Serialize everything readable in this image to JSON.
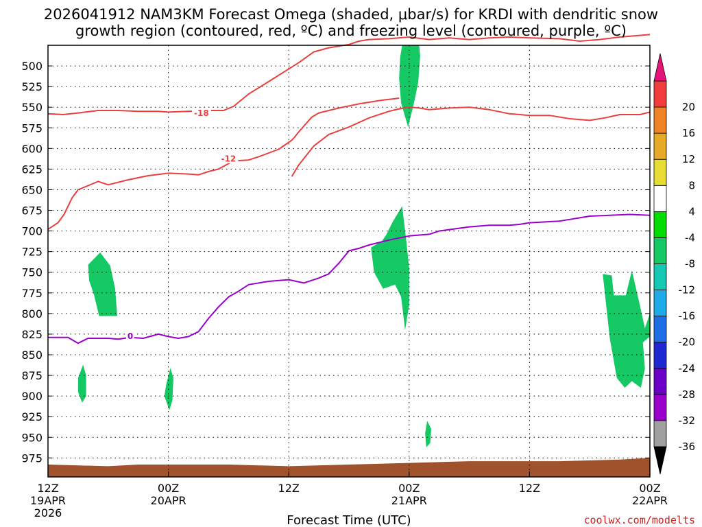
{
  "title_line1": "2026041912 NAM3KM Forecast Omega (shaded, μbar/s) for KRDI with dendritic snow",
  "title_line2": "growth region (contoured, red, ºC) and freezing level (contoured, purple, ºC)",
  "credit": "coolwx.com/modelts",
  "chart_data": {
    "type": "time-height cross section",
    "xlabel": "Forecast Time (UTC)",
    "x_range_hours": [
      0,
      60
    ],
    "x_ticks": [
      {
        "h": 0,
        "l1": "12Z",
        "l2": "19APR",
        "l3": "2026"
      },
      {
        "h": 12,
        "l1": "00Z",
        "l2": "20APR",
        "l3": ""
      },
      {
        "h": 24,
        "l1": "12Z",
        "l2": "",
        "l3": ""
      },
      {
        "h": 36,
        "l1": "00Z",
        "l2": "21APR",
        "l3": ""
      },
      {
        "h": 48,
        "l1": "12Z",
        "l2": "",
        "l3": ""
      },
      {
        "h": 60,
        "l1": "00Z",
        "l2": "22APR",
        "l3": ""
      }
    ],
    "y_range_mb": [
      998,
      475
    ],
    "y_ticks": [
      500,
      525,
      550,
      575,
      600,
      625,
      650,
      675,
      700,
      725,
      750,
      775,
      800,
      825,
      850,
      875,
      900,
      925,
      950,
      975
    ],
    "grid": true,
    "colorbar": {
      "boundaries": [
        -36,
        -32,
        -28,
        -24,
        -20,
        -16,
        -12,
        -8,
        -4,
        4,
        8,
        12,
        16,
        20
      ],
      "tick_labels": [
        "-36",
        "-32",
        "-28",
        "-24",
        "-20",
        "-16",
        "-12",
        "-8",
        "-4",
        "4",
        "8",
        "12",
        "16",
        "20"
      ],
      "colors": [
        "#a0a0a0",
        "#9900cc",
        "#6a00c8",
        "#1e28d2",
        "#1e6ee6",
        "#1eaae6",
        "#14c8b4",
        "#14c864",
        "#00dc00",
        "#ffffff",
        "#e6dc32",
        "#e6aa28",
        "#f08228",
        "#f03c3c"
      ],
      "under_color": "#000000",
      "over_color": "#e6147a"
    },
    "terrain": {
      "color": "#a0522d",
      "surface_mb": [
        [
          0,
          983
        ],
        [
          6,
          985
        ],
        [
          9,
          983
        ],
        [
          18,
          983
        ],
        [
          24,
          985
        ],
        [
          30,
          983
        ],
        [
          36,
          981
        ],
        [
          42,
          979
        ],
        [
          51,
          979
        ],
        [
          57,
          977
        ],
        [
          60,
          975
        ]
      ]
    },
    "contours": [
      {
        "level": "-18",
        "color": "#e8403c",
        "label_at": [
          15.3,
          557
        ],
        "points": [
          [
            0,
            558
          ],
          [
            1.5,
            559
          ],
          [
            3,
            557
          ],
          [
            5,
            554
          ],
          [
            7,
            554
          ],
          [
            9,
            555
          ],
          [
            11,
            555
          ],
          [
            12,
            556
          ],
          [
            14,
            555
          ],
          [
            16,
            554
          ],
          [
            17.5,
            554
          ],
          [
            18.5,
            549
          ],
          [
            20,
            534
          ],
          [
            22,
            519
          ],
          [
            25,
            496
          ],
          [
            26.5,
            483
          ],
          [
            28,
            478
          ],
          [
            30,
            474
          ],
          [
            31,
            470
          ],
          [
            32,
            468
          ],
          [
            34,
            467
          ],
          [
            36,
            465
          ],
          [
            38,
            468
          ],
          [
            40,
            466
          ],
          [
            42,
            468
          ],
          [
            44,
            466
          ],
          [
            46,
            465
          ],
          [
            48,
            466
          ],
          [
            51,
            467
          ],
          [
            53,
            470
          ],
          [
            55,
            468
          ],
          [
            57,
            465
          ],
          [
            60,
            462
          ]
        ]
      },
      {
        "level": "-18",
        "color": "#e8403c",
        "points": [
          [
            24.3,
            634
          ],
          [
            25,
            620
          ],
          [
            26.5,
            597
          ],
          [
            28,
            583
          ],
          [
            30,
            574
          ],
          [
            32,
            563
          ],
          [
            34,
            555
          ],
          [
            35,
            552
          ],
          [
            36,
            550
          ],
          [
            37,
            551
          ],
          [
            38,
            553
          ],
          [
            40,
            551
          ],
          [
            42,
            550
          ],
          [
            44,
            553
          ],
          [
            46,
            558
          ],
          [
            48,
            560
          ],
          [
            50,
            560
          ],
          [
            52,
            564
          ],
          [
            54,
            566
          ],
          [
            55.5,
            563
          ],
          [
            57,
            559
          ],
          [
            59,
            559
          ],
          [
            60,
            556
          ]
        ]
      },
      {
        "level": "-12",
        "color": "#e8403c",
        "label_at": [
          18,
          612
        ],
        "points": [
          [
            0,
            698
          ],
          [
            1,
            690
          ],
          [
            1.6,
            680
          ],
          [
            2,
            670
          ],
          [
            2.4,
            660
          ],
          [
            3,
            650
          ],
          [
            4,
            645
          ],
          [
            5,
            640
          ],
          [
            6,
            644
          ],
          [
            8,
            638
          ],
          [
            10,
            633
          ],
          [
            12,
            630
          ],
          [
            14,
            631
          ],
          [
            15,
            632
          ],
          [
            16,
            628
          ],
          [
            17,
            625
          ],
          [
            18.5,
            615
          ],
          [
            20,
            614
          ],
          [
            21,
            610
          ],
          [
            23,
            601
          ],
          [
            24.3,
            590
          ],
          [
            24.6,
            586
          ],
          [
            25,
            580
          ],
          [
            25.5,
            573
          ],
          [
            26.3,
            562
          ],
          [
            27,
            557
          ],
          [
            29,
            551
          ],
          [
            31,
            546
          ],
          [
            33,
            542
          ],
          [
            35,
            539
          ]
        ]
      },
      {
        "level": "0",
        "color": "#9900cc",
        "label_at": [
          8.2,
          827
        ],
        "points": [
          [
            0,
            829
          ],
          [
            2,
            829
          ],
          [
            3,
            836
          ],
          [
            4,
            830
          ],
          [
            6,
            830
          ],
          [
            7,
            831
          ],
          [
            8.2,
            829
          ],
          [
            9.5,
            830
          ],
          [
            11,
            825
          ],
          [
            12,
            828
          ],
          [
            13,
            830
          ],
          [
            14,
            828
          ],
          [
            15,
            822
          ],
          [
            16,
            806
          ],
          [
            17,
            792
          ],
          [
            18,
            780
          ],
          [
            19,
            773
          ],
          [
            20,
            765
          ],
          [
            22,
            761
          ],
          [
            24,
            759
          ],
          [
            25.5,
            763
          ],
          [
            27,
            757
          ],
          [
            28,
            752
          ],
          [
            28.6,
            744
          ],
          [
            29,
            739
          ],
          [
            30,
            724
          ],
          [
            31,
            721
          ],
          [
            32,
            717
          ],
          [
            34,
            711
          ],
          [
            36,
            706
          ],
          [
            38,
            704
          ],
          [
            39,
            700
          ],
          [
            42,
            695
          ],
          [
            44,
            693
          ],
          [
            46,
            693
          ],
          [
            47,
            692
          ],
          [
            48,
            690
          ],
          [
            51,
            688
          ],
          [
            52,
            686
          ],
          [
            54,
            682
          ],
          [
            58,
            680
          ],
          [
            60,
            681
          ]
        ]
      }
    ],
    "omega_regions": [
      {
        "value": 6,
        "polygon": [
          [
            21.2,
            475
          ],
          [
            21.9,
            475
          ],
          [
            22.1,
            490
          ],
          [
            22.0,
            512
          ],
          [
            21.6,
            535
          ],
          [
            21.2,
            522
          ],
          [
            21.0,
            497
          ]
        ]
      },
      {
        "value": 6,
        "polygon": [
          [
            23.3,
            475
          ],
          [
            23.8,
            475
          ],
          [
            23.9,
            490
          ],
          [
            23.6,
            504
          ],
          [
            23.3,
            490
          ]
        ]
      },
      {
        "value": -6,
        "polygon": [
          [
            35.3,
            475
          ],
          [
            37.0,
            475
          ],
          [
            37.1,
            488
          ],
          [
            36.9,
            520
          ],
          [
            36.5,
            544
          ],
          [
            35.9,
            574
          ],
          [
            35.2,
            545
          ],
          [
            35.0,
            515
          ],
          [
            35.1,
            490
          ]
        ]
      },
      {
        "value": -6,
        "polygon": [
          [
            4.0,
            741
          ],
          [
            5.2,
            726
          ],
          [
            6.2,
            742
          ],
          [
            6.7,
            770
          ],
          [
            6.9,
            803
          ],
          [
            5.1,
            803
          ],
          [
            4.6,
            778
          ],
          [
            4.1,
            760
          ]
        ]
      },
      {
        "value": 6,
        "polygon": [
          [
            10.0,
            720
          ],
          [
            11.0,
            703
          ],
          [
            11.5,
            728
          ],
          [
            11.5,
            756
          ],
          [
            11.1,
            788
          ],
          [
            10.4,
            768
          ],
          [
            10.0,
            745
          ]
        ]
      },
      {
        "value": -6,
        "polygon": [
          [
            3.0,
            878
          ],
          [
            3.5,
            862
          ],
          [
            3.8,
            875
          ],
          [
            3.8,
            900
          ],
          [
            3.4,
            908
          ],
          [
            3.0,
            895
          ]
        ]
      },
      {
        "value": -6,
        "polygon": [
          [
            11.8,
            885
          ],
          [
            12.2,
            866
          ],
          [
            12.5,
            878
          ],
          [
            12.4,
            905
          ],
          [
            12.1,
            917
          ],
          [
            11.6,
            900
          ]
        ]
      },
      {
        "value": 6,
        "polygon": [
          [
            16.2,
            805
          ],
          [
            17.0,
            790
          ],
          [
            17.9,
            800
          ],
          [
            18.1,
            829
          ],
          [
            17.0,
            831
          ],
          [
            16.4,
            822
          ]
        ]
      },
      {
        "value": 6,
        "polygon": [
          [
            27.2,
            730
          ],
          [
            27.8,
            701
          ],
          [
            28.6,
            707
          ],
          [
            28.7,
            740
          ],
          [
            28.0,
            780
          ],
          [
            27.5,
            790
          ],
          [
            27.2,
            760
          ]
        ]
      },
      {
        "value": 6,
        "polygon": [
          [
            29.1,
            830
          ],
          [
            29.6,
            790
          ],
          [
            30.1,
            822
          ],
          [
            30.2,
            860
          ],
          [
            29.8,
            890
          ],
          [
            29.2,
            870
          ]
        ]
      },
      {
        "value": -6,
        "polygon": [
          [
            32.2,
            720
          ],
          [
            33.3,
            712
          ],
          [
            33.7,
            705
          ],
          [
            34.4,
            688
          ],
          [
            35.3,
            670
          ],
          [
            35.7,
            710
          ],
          [
            36.0,
            745
          ],
          [
            36.0,
            790
          ],
          [
            35.6,
            820
          ],
          [
            35.2,
            780
          ],
          [
            34.6,
            765
          ],
          [
            33.4,
            770
          ],
          [
            32.5,
            750
          ]
        ]
      },
      {
        "value": 6,
        "polygon": [
          [
            36.2,
            805
          ],
          [
            37.0,
            767
          ],
          [
            38.0,
            780
          ],
          [
            38.8,
            806
          ],
          [
            39.7,
            822
          ],
          [
            40.5,
            810
          ],
          [
            41.1,
            830
          ],
          [
            41.3,
            880
          ],
          [
            40.6,
            895
          ],
          [
            39.7,
            880
          ],
          [
            38.8,
            860
          ],
          [
            37.8,
            840
          ]
        ]
      },
      {
        "value": 6,
        "polygon": [
          [
            44.2,
            680
          ],
          [
            44.6,
            645
          ],
          [
            45.0,
            670
          ],
          [
            45.0,
            700
          ],
          [
            44.6,
            720
          ],
          [
            44.2,
            700
          ]
        ]
      },
      {
        "value": 6,
        "polygon": [
          [
            47.7,
            855
          ],
          [
            47.9,
            842
          ],
          [
            48.1,
            858
          ],
          [
            47.9,
            870
          ]
        ]
      },
      {
        "value": 6,
        "polygon": [
          [
            50.3,
            710
          ],
          [
            50.6,
            668
          ],
          [
            51.2,
            710
          ],
          [
            51.9,
            745
          ],
          [
            51.9,
            800
          ],
          [
            51.3,
            832
          ],
          [
            50.8,
            790
          ],
          [
            50.5,
            750
          ]
        ]
      },
      {
        "value": -6,
        "polygon": [
          [
            55.3,
            752
          ],
          [
            56.2,
            754
          ],
          [
            56.4,
            778
          ],
          [
            57.6,
            778
          ],
          [
            58.2,
            748
          ],
          [
            59.0,
            790
          ],
          [
            59.5,
            818
          ],
          [
            60,
            800
          ],
          [
            60,
            828
          ],
          [
            59.3,
            835
          ],
          [
            59.5,
            867
          ],
          [
            59.1,
            890
          ],
          [
            58.2,
            882
          ],
          [
            57.5,
            890
          ],
          [
            56.7,
            878
          ],
          [
            56.0,
            830
          ]
        ]
      },
      {
        "value": -6,
        "polygon": [
          [
            37.6,
            945
          ],
          [
            37.8,
            930
          ],
          [
            38.2,
            940
          ],
          [
            38.1,
            957
          ],
          [
            37.7,
            962
          ]
        ]
      }
    ]
  }
}
